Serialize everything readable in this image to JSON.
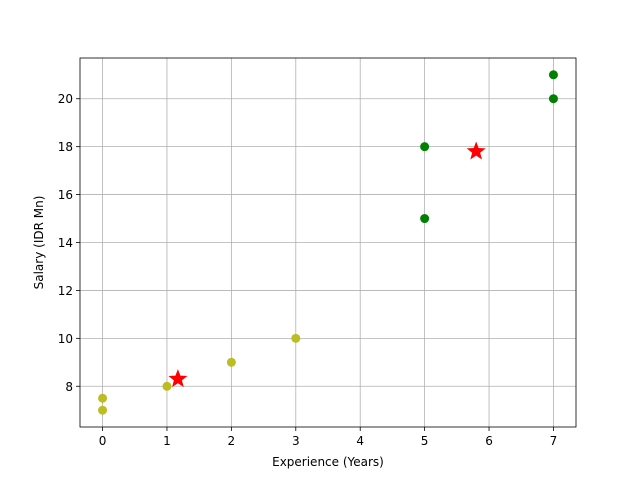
{
  "chart_data": {
    "type": "scatter",
    "title": "",
    "xlabel": "Experience (Years)",
    "ylabel": "Salary (IDR Mn)",
    "xlim": [
      -0.35,
      7.35
    ],
    "ylim": [
      6.3,
      21.7
    ],
    "x_ticks": [
      0,
      1,
      2,
      3,
      4,
      5,
      6,
      7
    ],
    "y_ticks": [
      8,
      10,
      12,
      14,
      16,
      18,
      20
    ],
    "grid": true,
    "series": [
      {
        "color": "#bcbd22",
        "marker": "circle",
        "points": [
          {
            "x": 0,
            "y": 7.0
          },
          {
            "x": 0,
            "y": 7.5
          },
          {
            "x": 1,
            "y": 8.0
          },
          {
            "x": 2,
            "y": 9.0
          },
          {
            "x": 3,
            "y": 10.0
          }
        ]
      },
      {
        "color": "#008000",
        "marker": "circle",
        "points": [
          {
            "x": 5,
            "y": 15.0
          },
          {
            "x": 5,
            "y": 18.0
          },
          {
            "x": 7,
            "y": 20.0
          },
          {
            "x": 7,
            "y": 21.0
          }
        ]
      },
      {
        "color": "#ff0000",
        "marker": "star",
        "points": [
          {
            "x": 1.17,
            "y": 8.3
          },
          {
            "x": 5.8,
            "y": 17.8
          }
        ]
      }
    ]
  }
}
